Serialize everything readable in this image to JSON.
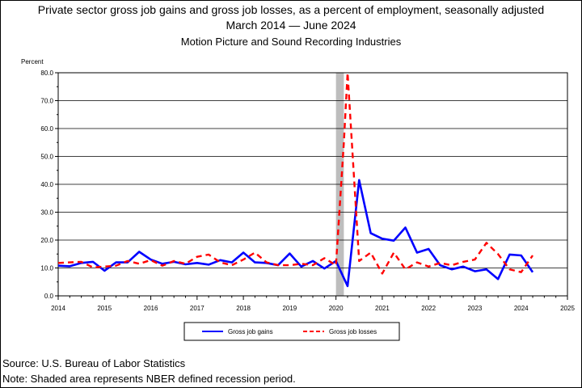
{
  "chart_data": {
    "type": "line",
    "title": "Private sector gross job gains and gross job losses, as a percent of employment, seasonally adjusted",
    "subtitle_dates": "March 2014 — June 2024",
    "subtitle_industry": "Motion Picture and Sound Recording Industries",
    "ylabel": "Percent",
    "xlabel": "",
    "ylim": [
      0,
      80
    ],
    "xlim": [
      2014,
      2025
    ],
    "yticks": [
      "0.0",
      "10.0",
      "20.0",
      "30.0",
      "40.0",
      "50.0",
      "60.0",
      "70.0",
      "80.0"
    ],
    "xticks": [
      "2014",
      "2015",
      "2016",
      "2017",
      "2018",
      "2019",
      "2020",
      "2021",
      "2022",
      "2023",
      "2024",
      "2025"
    ],
    "grid": true,
    "legend_position": "bottom",
    "recession_band": [
      2020.0,
      2020.17
    ],
    "series": [
      {
        "name": "Gross job gains",
        "color": "#0000ff",
        "style": "solid",
        "x": [
          2014.0,
          2014.25,
          2014.5,
          2014.75,
          2015.0,
          2015.25,
          2015.5,
          2015.75,
          2016.0,
          2016.25,
          2016.5,
          2016.75,
          2017.0,
          2017.25,
          2017.5,
          2017.75,
          2018.0,
          2018.25,
          2018.5,
          2018.75,
          2019.0,
          2019.25,
          2019.5,
          2019.75,
          2020.0,
          2020.25,
          2020.5,
          2020.75,
          2021.0,
          2021.25,
          2021.5,
          2021.75,
          2022.0,
          2022.25,
          2022.5,
          2022.75,
          2023.0,
          2023.25,
          2023.5,
          2023.75,
          2024.0,
          2024.25
        ],
        "values": [
          10.8,
          10.6,
          11.8,
          12.2,
          9.0,
          12.0,
          12.0,
          15.8,
          13.0,
          11.5,
          12.2,
          11.3,
          11.8,
          11.2,
          12.8,
          12.0,
          15.5,
          12.0,
          11.8,
          11.0,
          15.2,
          10.5,
          12.5,
          9.8,
          12.5,
          3.5,
          41.5,
          22.5,
          20.5,
          19.8,
          24.5,
          15.5,
          16.8,
          11.0,
          9.5,
          10.5,
          8.8,
          9.5,
          6.0,
          14.8,
          14.5,
          8.5
        ]
      },
      {
        "name": "Gross job losses",
        "color": "#ff0000",
        "style": "dashed",
        "x": [
          2014.0,
          2014.25,
          2014.5,
          2014.75,
          2015.0,
          2015.25,
          2015.5,
          2015.75,
          2016.0,
          2016.25,
          2016.5,
          2016.75,
          2017.0,
          2017.25,
          2017.5,
          2017.75,
          2018.0,
          2018.25,
          2018.5,
          2018.75,
          2019.0,
          2019.25,
          2019.5,
          2019.75,
          2020.0,
          2020.17,
          2020.25,
          2020.5,
          2020.75,
          2021.0,
          2021.25,
          2021.5,
          2021.75,
          2022.0,
          2022.25,
          2022.5,
          2022.75,
          2023.0,
          2023.25,
          2023.5,
          2023.75,
          2024.0,
          2024.25
        ],
        "values": [
          11.8,
          12.0,
          12.2,
          10.2,
          10.5,
          10.8,
          12.5,
          11.5,
          12.8,
          10.8,
          12.5,
          11.5,
          14.0,
          14.8,
          12.0,
          11.0,
          13.0,
          15.5,
          12.0,
          11.0,
          11.0,
          11.5,
          11.0,
          13.5,
          11.0,
          55.0,
          80.0,
          12.5,
          15.5,
          8.0,
          15.5,
          9.5,
          12.0,
          10.5,
          11.8,
          11.0,
          12.2,
          13.0,
          19.0,
          15.0,
          9.5,
          8.5,
          14.5
        ]
      }
    ]
  },
  "footer": {
    "source": "Source: U.S. Bureau of Labor Statistics",
    "note": "Note: Shaded area represents NBER defined recession period."
  }
}
